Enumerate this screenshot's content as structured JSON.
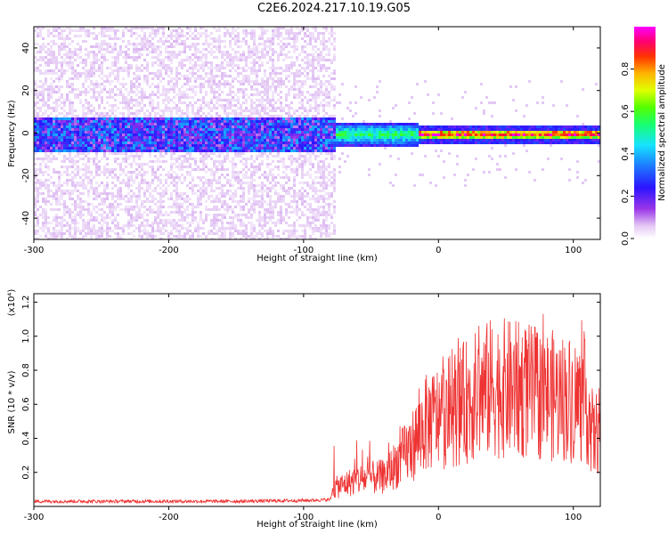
{
  "title": "C2E6.2024.217.10.19.G05",
  "chart_data": [
    {
      "type": "heatmap",
      "xlabel": "Height of straight line (km)",
      "ylabel": "Frequency (Hz)",
      "xlim": [
        -300,
        120
      ],
      "ylim": [
        -50,
        50
      ],
      "xticks": [
        -300,
        -200,
        -100,
        0,
        100
      ],
      "yticks": [
        -40,
        -20,
        0,
        20,
        40
      ],
      "colorbar": {
        "label": "Normalized spectral amplitude",
        "ticks": [
          0.0,
          0.2,
          0.4,
          0.6,
          0.8
        ],
        "range": [
          0,
          1
        ]
      },
      "segments": [
        {
          "x_range": [
            -300,
            -78
          ],
          "description": "noise",
          "freq_center": 0,
          "core_halfwidth": 8,
          "amplitude_core": 0.25,
          "amplitude_background": 0.05
        },
        {
          "x_range": [
            -78,
            -15
          ],
          "freq_center": 0,
          "core_halfwidth": 4,
          "amplitude_core": 0.55
        },
        {
          "x_range": [
            -15,
            120
          ],
          "freq_center": 0,
          "core_halfwidth": 2,
          "amplitude_core": 0.95
        }
      ]
    },
    {
      "type": "line",
      "xlabel": "Height of straight line (km)",
      "ylabel": "SNR (10 * v/v)",
      "yscale_label": "(x10⁴)",
      "xlim": [
        -300,
        120
      ],
      "ylim": [
        0,
        1.25
      ],
      "xticks": [
        -300,
        -200,
        -100,
        0,
        100
      ],
      "yticks": [
        0.2,
        0.4,
        0.6,
        0.8,
        1.0,
        1.2
      ],
      "series": [
        {
          "color": "#ee3333",
          "x": [
            -300,
            -250,
            -200,
            -150,
            -100,
            -80,
            -78,
            -60,
            -40,
            -20,
            -10,
            0,
            20,
            40,
            60,
            80,
            100,
            110,
            115,
            120
          ],
          "y": [
            0.03,
            0.03,
            0.03,
            0.03,
            0.035,
            0.04,
            0.12,
            0.18,
            0.2,
            0.4,
            0.55,
            0.6,
            0.7,
            0.8,
            0.78,
            0.75,
            0.72,
            0.7,
            0.45,
            0.55
          ]
        }
      ]
    }
  ]
}
